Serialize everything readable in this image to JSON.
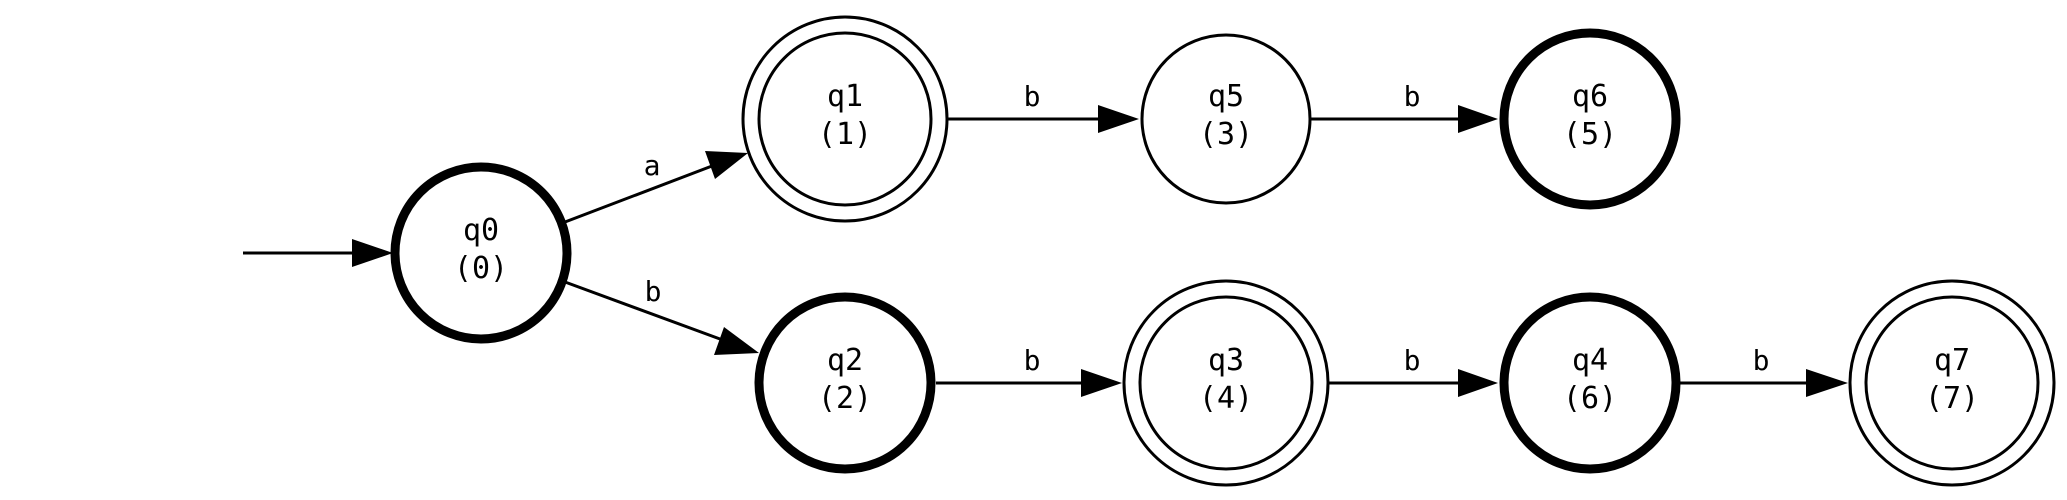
{
  "diagram": {
    "type": "state-machine",
    "colors": {
      "stroke": "#000000",
      "background": "#ffffff"
    },
    "states": [
      {
        "id": "q0",
        "name": "q0",
        "order": "(0)",
        "style": "bold"
      },
      {
        "id": "q1",
        "name": "q1",
        "order": "(1)",
        "style": "double"
      },
      {
        "id": "q2",
        "name": "q2",
        "order": "(2)",
        "style": "bold"
      },
      {
        "id": "q3",
        "name": "q3",
        "order": "(4)",
        "style": "double"
      },
      {
        "id": "q4",
        "name": "q4",
        "order": "(6)",
        "style": "bold"
      },
      {
        "id": "q5",
        "name": "q5",
        "order": "(3)",
        "style": "normal"
      },
      {
        "id": "q6",
        "name": "q6",
        "order": "(5)",
        "style": "bold"
      },
      {
        "id": "q7",
        "name": "q7",
        "order": "(7)",
        "style": "double"
      }
    ],
    "start_state": "q0",
    "transitions": [
      {
        "from": "q0",
        "to": "q1",
        "label": "a"
      },
      {
        "from": "q0",
        "to": "q2",
        "label": "b"
      },
      {
        "from": "q1",
        "to": "q5",
        "label": "b"
      },
      {
        "from": "q5",
        "to": "q6",
        "label": "b"
      },
      {
        "from": "q2",
        "to": "q3",
        "label": "b"
      },
      {
        "from": "q3",
        "to": "q4",
        "label": "b"
      },
      {
        "from": "q4",
        "to": "q7",
        "label": "b"
      }
    ]
  }
}
